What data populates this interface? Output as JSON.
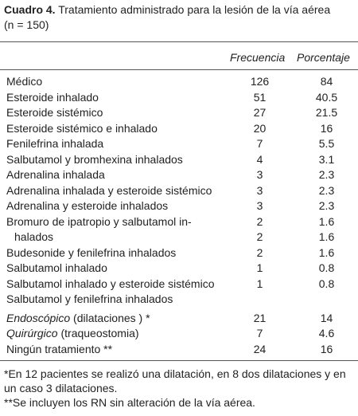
{
  "caption": {
    "number": "Cuadro 4.",
    "text": " Tratamiento administrado para la lesión de la vía aérea",
    "n": "(n = 150)"
  },
  "headers": {
    "frequency": "Frecuencia",
    "percentage": "Porcentaje"
  },
  "rows": [
    {
      "label": "Médico",
      "frequency": "126",
      "percentage": "84"
    },
    {
      "label": "Esteroide inhalado",
      "frequency": "51",
      "percentage": "40.5"
    },
    {
      "label": "Esteroide sistémico",
      "frequency": "27",
      "percentage": "21.5"
    },
    {
      "label": "Esteroide sistémico e inhalado",
      "frequency": "20",
      "percentage": "16"
    },
    {
      "label": "Fenilefrina inhalada",
      "frequency": "7",
      "percentage": "5.5"
    },
    {
      "label": "Salbutamol y bromhexina inhalados",
      "frequency": "4",
      "percentage": "3.1"
    },
    {
      "label": "Adrenalina inhalada",
      "frequency": "3",
      "percentage": "2.3"
    },
    {
      "label": "Adrenalina inhalada y esteroide sistémico",
      "frequency": "3",
      "percentage": "2.3"
    },
    {
      "label": "Adrenalina y esteroide inhalados",
      "frequency": "3",
      "percentage": "2.3"
    },
    {
      "label": "Bromuro de ipatropio y salbutamol in-",
      "frequency": "2",
      "percentage": "1.6"
    },
    {
      "label": "halados",
      "frequency": "2",
      "percentage": "1.6"
    },
    {
      "label": "Budesonide y fenilefrina inhalados",
      "frequency": "2",
      "percentage": "1.6"
    },
    {
      "label": "Salbutamol inhalado",
      "frequency": "1",
      "percentage": "0.8"
    },
    {
      "label": "Salbutamol inhalado y esteroide sistémico",
      "frequency": "1",
      "percentage": "0.8"
    },
    {
      "label": "Salbutamol y fenilefrina inhalados",
      "frequency": "",
      "percentage": ""
    },
    {
      "label_italic": "Endoscópico",
      "label_rest": " (dilataciones ) *",
      "frequency": "21",
      "percentage": "14"
    },
    {
      "label_italic": "Quirúrgico",
      "label_rest": " (traqueostomia)",
      "frequency": "7",
      "percentage": "4.6"
    },
    {
      "label": "Ningún tratamiento **",
      "frequency": "24",
      "percentage": "16"
    }
  ],
  "notes": [
    "*En 12 pacientes se realizó una dilatación, en 8 dos dilataciones y en un caso 3 dilataciones.",
    "**Se incluyen los RN sin alteración de la vía aérea."
  ]
}
